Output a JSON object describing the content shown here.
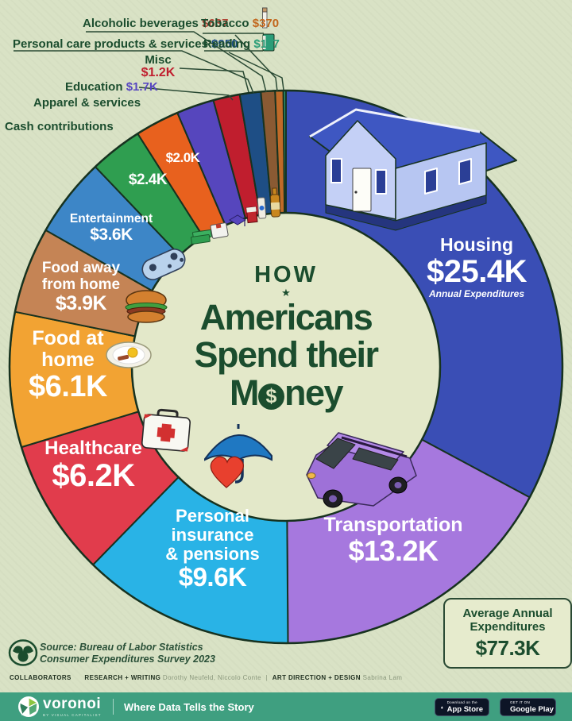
{
  "palette": {
    "background": "#d9e2c5",
    "inner_circle": "#e3e8c9",
    "outline": "#17321f",
    "title_green": "#1b4d2e",
    "footer_bg": "#3f9f80",
    "badge_bg": "#0d1526"
  },
  "title": {
    "kicker": "HOW",
    "star": "★",
    "line1": "Americans",
    "line2": "Spend their",
    "line3_pre": "M",
    "line3_dollar": "$",
    "line3_post": "ney"
  },
  "chart_data": {
    "type": "pie",
    "title": "How Americans Spend their Money",
    "annual_note": "Annual Expenditures",
    "total": {
      "label_line1": "Average Annual",
      "label_line2": "Expenditures",
      "value": "$77.3K"
    },
    "source": "Bureau of Labor Statistics Consumer Expenditures Survey 2023",
    "slices": [
      {
        "id": "housing",
        "label": "Housing",
        "display": "$25.4K",
        "value_k": 25.4,
        "color": "#3a4eb5"
      },
      {
        "id": "transportation",
        "label": "Transportation",
        "display": "$13.2K",
        "value_k": 13.2,
        "color": "#a678de"
      },
      {
        "id": "personal-insurance",
        "label": "Personal insurance & pensions",
        "label_lines": [
          "Personal",
          "insurance",
          "& pensions"
        ],
        "display": "$9.6K",
        "value_k": 9.6,
        "color": "#29b3e6"
      },
      {
        "id": "healthcare",
        "label": "Healthcare",
        "display": "$6.2K",
        "value_k": 6.2,
        "color": "#e13c4c"
      },
      {
        "id": "food-at-home",
        "label": "Food at home",
        "label_lines": [
          "Food at",
          "home"
        ],
        "display": "$6.1K",
        "value_k": 6.1,
        "color": "#f2a333"
      },
      {
        "id": "food-away",
        "label": "Food away from home",
        "label_lines": [
          "Food away",
          "from home"
        ],
        "display": "$3.9K",
        "value_k": 3.9,
        "color": "#c58455"
      },
      {
        "id": "entertainment",
        "label": "Entertainment",
        "display": "$3.6K",
        "value_k": 3.6,
        "color": "#3d86c7"
      },
      {
        "id": "cash-contributions",
        "label": "Cash contributions",
        "display": "$2.4K",
        "value_k": 2.4,
        "color": "#2f9e50"
      },
      {
        "id": "apparel",
        "label": "Apparel & services",
        "display": "$2.0K",
        "value_k": 2.0,
        "color": "#e8611e"
      },
      {
        "id": "education",
        "label": "Education",
        "display": "$1.7K",
        "value_k": 1.7,
        "color": "#5646bd",
        "label_value_color": "#5747c0"
      },
      {
        "id": "misc",
        "label": "Misc",
        "display": "$1.2K",
        "value_k": 1.2,
        "color": "#c01e2e",
        "label_value_color": "#c01e2e"
      },
      {
        "id": "personal-care",
        "label": "Personal care products & services",
        "display": "$950",
        "value_k": 0.95,
        "color": "#1e4e85",
        "label_value_color": "#1e4e85"
      },
      {
        "id": "alcoholic-beverages",
        "label": "Alcoholic beverages",
        "display": "$637",
        "value_k": 0.637,
        "color": "#8a5a33",
        "label_value_color": "#b04434"
      },
      {
        "id": "tobacco",
        "label": "Tobacco",
        "display": "$370",
        "value_k": 0.37,
        "color": "#c06a28",
        "label_value_color": "#c2661c"
      },
      {
        "id": "reading",
        "label": "Reading",
        "display": "$117",
        "value_k": 0.117,
        "color": "#2a9d78",
        "label_value_color": "#2a9d78"
      }
    ]
  },
  "source_block": {
    "line1": "Source: Bureau of Labor Statistics",
    "line2": "Consumer Expenditures Survey 2023"
  },
  "credits": {
    "collaborators_label": "COLLABORATORS",
    "research_label": "RESEARCH + WRITING",
    "research_names": "Dorothy Neufeld, Niccolo Conte",
    "divider": "|",
    "art_label": "ART DIRECTION + DESIGN",
    "art_names": "Sabrina Lam"
  },
  "footer": {
    "brand": "voronoi",
    "brand_sub": "BY VISUAL CAPITALIST",
    "tagline": "Where Data Tells the Story",
    "appstore_pre": "Download on the",
    "appstore_name": "App Store",
    "googleplay_pre": "GET IT ON",
    "googleplay_name": "Google Play"
  }
}
